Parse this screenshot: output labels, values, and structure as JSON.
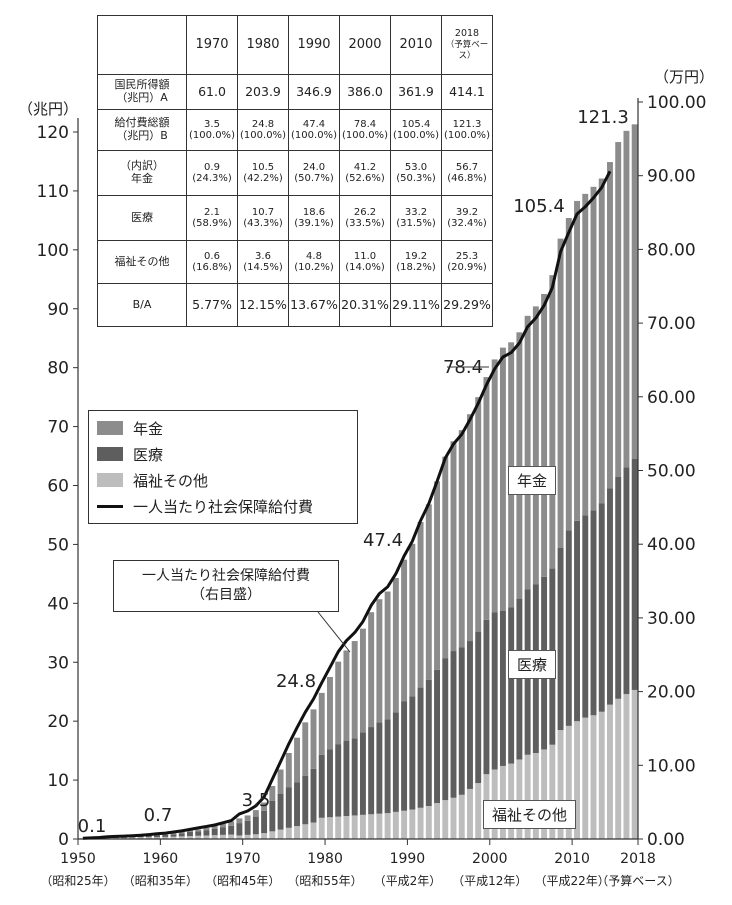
{
  "chart_data": {
    "type": "stacked-bar-with-line",
    "title": "",
    "y_left": {
      "unit_label": "（兆円）",
      "ylim": [
        0,
        120
      ],
      "ticks": [
        "0",
        "10",
        "20",
        "30",
        "40",
        "50",
        "60",
        "70",
        "80",
        "90",
        "100",
        "110",
        "120"
      ]
    },
    "y_right": {
      "unit_label": "（万円）",
      "ylim": [
        0,
        100
      ],
      "ticks": [
        "0.00",
        "10.00",
        "20.00",
        "30.00",
        "40.00",
        "50.00",
        "60.00",
        "70.00",
        "80.00",
        "90.00",
        "100.00"
      ]
    },
    "x_ticks": [
      {
        "year": 1950,
        "label": "1950",
        "era": "（昭和25年）"
      },
      {
        "year": 1960,
        "label": "1960",
        "era": "（昭和35年）"
      },
      {
        "year": 1970,
        "label": "1970",
        "era": "（昭和45年）"
      },
      {
        "year": 1980,
        "label": "1980",
        "era": "（昭和55年）"
      },
      {
        "year": 1990,
        "label": "1990",
        "era": "（平成2年）"
      },
      {
        "year": 2000,
        "label": "2000",
        "era": "（平成12年）"
      },
      {
        "year": 2010,
        "label": "2010",
        "era": "（平成22年）"
      },
      {
        "year": 2018,
        "label": "2018",
        "era": "（予算ベース）"
      }
    ],
    "series_names": {
      "pension": "年金",
      "medical": "医療",
      "welfare": "福祉その他",
      "per_capita": "一人当たり社会保障給付費"
    },
    "series_labels_in_plot": {
      "pension": "年金",
      "medical": "医療",
      "welfare": "福祉その他"
    },
    "callout": {
      "line1": "一人当たり社会保障給付費",
      "line2": "（右目盛）"
    },
    "data_labels": [
      {
        "year": 1950,
        "value": 0.1,
        "text": "0.1"
      },
      {
        "year": 1960,
        "value": 0.7,
        "text": "0.7"
      },
      {
        "year": 1970,
        "value": 3.5,
        "text": "3.5"
      },
      {
        "year": 1980,
        "value": 24.8,
        "text": "24.8"
      },
      {
        "year": 1990,
        "value": 47.4,
        "text": "47.4"
      },
      {
        "year": 2000,
        "value": 78.4,
        "text": "78.4"
      },
      {
        "year": 2010,
        "value": 105.4,
        "text": "105.4"
      },
      {
        "year": 2018,
        "value": 121.3,
        "text": "121.3"
      }
    ],
    "years": [
      1951,
      1952,
      1953,
      1954,
      1955,
      1956,
      1957,
      1958,
      1959,
      1960,
      1961,
      1962,
      1963,
      1964,
      1965,
      1966,
      1967,
      1968,
      1969,
      1970,
      1971,
      1972,
      1973,
      1974,
      1975,
      1976,
      1977,
      1978,
      1979,
      1980,
      1981,
      1982,
      1983,
      1984,
      1985,
      1986,
      1987,
      1988,
      1989,
      1990,
      1991,
      1992,
      1993,
      1994,
      1995,
      1996,
      1997,
      1998,
      1999,
      2000,
      2001,
      2002,
      2003,
      2004,
      2005,
      2006,
      2007,
      2008,
      2009,
      2010,
      2011,
      2012,
      2013,
      2014,
      2015,
      2016,
      2017,
      2018
    ],
    "total": [
      0.1,
      0.2,
      0.3,
      0.4,
      0.4,
      0.4,
      0.5,
      0.6,
      0.6,
      0.7,
      0.8,
      1.0,
      1.2,
      1.5,
      1.6,
      1.9,
      2.2,
      2.6,
      3.0,
      3.5,
      4.0,
      4.9,
      6.2,
      9.0,
      11.8,
      14.6,
      17.2,
      19.8,
      22.0,
      24.8,
      27.5,
      30.1,
      32.0,
      33.6,
      35.7,
      38.5,
      40.7,
      42.0,
      44.3,
      47.4,
      50.1,
      53.8,
      56.8,
      60.7,
      64.9,
      67.5,
      69.4,
      72.1,
      75.0,
      78.4,
      81.4,
      83.4,
      84.3,
      86.0,
      88.8,
      90.4,
      92.5,
      95.7,
      101.9,
      105.4,
      108.3,
      109.5,
      110.7,
      112.1,
      114.9,
      118.3,
      120.2,
      121.3
    ],
    "welfare": [
      0.05,
      0.1,
      0.15,
      0.2,
      0.2,
      0.2,
      0.25,
      0.3,
      0.3,
      0.3,
      0.35,
      0.4,
      0.45,
      0.5,
      0.55,
      0.6,
      0.65,
      0.7,
      0.75,
      0.6,
      0.7,
      0.8,
      1.0,
      1.3,
      1.6,
      1.9,
      2.2,
      2.5,
      2.8,
      3.6,
      3.7,
      3.8,
      3.9,
      4.0,
      4.1,
      4.2,
      4.3,
      4.4,
      4.6,
      4.8,
      5.0,
      5.3,
      5.6,
      6.1,
      6.6,
      7.0,
      7.5,
      8.5,
      9.5,
      11.0,
      11.8,
      12.4,
      12.8,
      13.5,
      14.3,
      14.6,
      15.2,
      16.0,
      18.5,
      19.2,
      20.0,
      20.6,
      21.0,
      21.6,
      22.8,
      23.8,
      24.6,
      25.3
    ],
    "medical": [
      0.04,
      0.07,
      0.1,
      0.13,
      0.14,
      0.14,
      0.17,
      0.2,
      0.2,
      0.3,
      0.33,
      0.4,
      0.5,
      0.7,
      0.75,
      0.9,
      1.05,
      1.25,
      1.5,
      2.1,
      2.4,
      3.0,
      3.8,
      5.2,
      6.1,
      6.9,
      7.4,
      8.2,
      9.1,
      10.7,
      11.5,
      12.3,
      12.8,
      13.1,
      14.0,
      14.8,
      15.5,
      15.9,
      16.9,
      18.6,
      19.2,
      20.4,
      21.4,
      22.6,
      24.1,
      24.9,
      25.0,
      25.1,
      25.7,
      26.2,
      26.7,
      26.3,
      26.5,
      27.3,
      28.1,
      28.6,
      29.3,
      29.9,
      30.9,
      33.2,
      34.0,
      34.3,
      34.8,
      35.4,
      36.7,
      37.7,
      38.5,
      39.2
    ],
    "per_capita_man_yen": [
      0.1,
      0.15,
      0.2,
      0.3,
      0.35,
      0.4,
      0.45,
      0.5,
      0.6,
      0.7,
      0.8,
      0.95,
      1.1,
      1.3,
      1.5,
      1.7,
      1.9,
      2.2,
      2.5,
      3.4,
      3.8,
      4.5,
      5.7,
      8.1,
      10.5,
      12.9,
      15.1,
      17.2,
      19.0,
      21.2,
      23.3,
      25.4,
      26.9,
      28.0,
      29.5,
      31.7,
      33.3,
      34.2,
      36.0,
      38.4,
      40.4,
      43.2,
      45.5,
      48.5,
      51.7,
      53.6,
      54.9,
      56.9,
      59.1,
      61.6,
      63.8,
      65.4,
      66.0,
      67.3,
      69.5,
      70.7,
      72.4,
      74.8,
      79.7,
      82.3,
      84.8,
      85.8,
      87.0,
      88.4,
      90.6,
      null,
      null,
      null
    ]
  },
  "table": {
    "header_years": [
      "1970",
      "1980",
      "1990",
      "2000",
      "2010"
    ],
    "header_last_year": "2018",
    "header_last_note": "（予算ベース）",
    "rows": [
      {
        "label_main": "国民所得額",
        "label_sub": "（兆円）A",
        "cells": [
          "61.0",
          "203.9",
          "346.9",
          "386.0",
          "361.9",
          "414.1"
        ]
      },
      {
        "label_main": "給付費総額",
        "label_sub": "（兆円）B",
        "cells": [
          [
            "3.5",
            "(100.0%)"
          ],
          [
            "24.8",
            "(100.0%)"
          ],
          [
            "47.4",
            "(100.0%)"
          ],
          [
            "78.4",
            "(100.0%)"
          ],
          [
            "105.4",
            "(100.0%)"
          ],
          [
            "121.3",
            "(100.0%)"
          ]
        ]
      },
      {
        "label_main": "（内訳）",
        "label_sub": "年金",
        "cells": [
          [
            "0.9",
            "(24.3%)"
          ],
          [
            "10.5",
            "(42.2%)"
          ],
          [
            "24.0",
            "(50.7%)"
          ],
          [
            "41.2",
            "(52.6%)"
          ],
          [
            "53.0",
            "(50.3%)"
          ],
          [
            "56.7",
            "(46.8%)"
          ]
        ]
      },
      {
        "label_main": "医療",
        "label_sub": "",
        "cells": [
          [
            "2.1",
            "(58.9%)"
          ],
          [
            "10.7",
            "(43.3%)"
          ],
          [
            "18.6",
            "(39.1%)"
          ],
          [
            "26.2",
            "(33.5%)"
          ],
          [
            "33.2",
            "(31.5%)"
          ],
          [
            "39.2",
            "(32.4%)"
          ]
        ]
      },
      {
        "label_main": "福祉その他",
        "label_sub": "",
        "cells": [
          [
            "0.6",
            "(16.8%)"
          ],
          [
            "3.6",
            "(14.5%)"
          ],
          [
            "4.8",
            "(10.2%)"
          ],
          [
            "11.0",
            "(14.0%)"
          ],
          [
            "19.2",
            "(18.2%)"
          ],
          [
            "25.3",
            "(20.9%)"
          ]
        ]
      },
      {
        "label_main": "B/A",
        "label_sub": "",
        "cells": [
          "5.77%",
          "12.15%",
          "13.67%",
          "20.31%",
          "29.11%",
          "29.29%"
        ]
      }
    ]
  },
  "legend": {
    "pension": "年金",
    "medical": "医療",
    "welfare": "福祉その他",
    "per_capita": "一人当たり社会保障給付費"
  },
  "colors": {
    "pension": "#8c8c8c",
    "medical": "#5e5e5e",
    "welfare": "#bdbdbd",
    "line": "#111111",
    "axis": "#333333"
  }
}
